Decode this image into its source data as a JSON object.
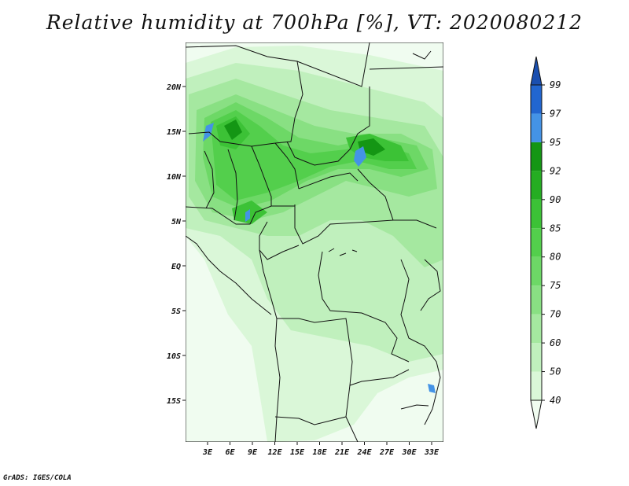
{
  "title": "Relative humidity at 700hPa [%], VT: 2020080212",
  "footer": "GrADS: IGES/COLA",
  "map": {
    "lat_ticks": [
      "20N",
      "15N",
      "10N",
      "5N",
      "EQ",
      "5S",
      "10S",
      "15S"
    ],
    "lon_ticks": [
      "3E",
      "6E",
      "9E",
      "12E",
      "15E",
      "18E",
      "21E",
      "24E",
      "27E",
      "30E",
      "33E"
    ]
  },
  "colorbar": {
    "levels": [
      "40",
      "50",
      "60",
      "70",
      "75",
      "80",
      "85",
      "90",
      "92",
      "95",
      "97",
      "99"
    ],
    "colors": [
      "#f0fcf0",
      "#daf7d8",
      "#c0f0bd",
      "#a5e8a0",
      "#89e083",
      "#6dd866",
      "#53cf4c",
      "#3cc236",
      "#25ad22",
      "#149614",
      "#4493e6",
      "#2266d0",
      "#1a4fb0"
    ]
  }
}
